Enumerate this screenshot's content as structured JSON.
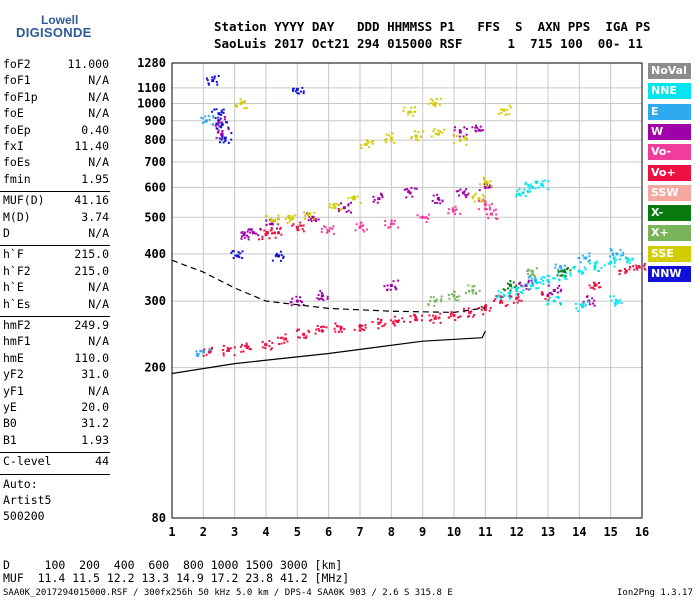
{
  "logo": {
    "line1": "Lowell",
    "line2": "DIGISONDE"
  },
  "header": {
    "line1": "Station YYYY DAY   DDD HHMMSS P1   FFS  S  AXN PPS  IGA PS",
    "line2": "SaoLuis 2017 Oct21 294 015000 RSF      1  715 100  00- 11"
  },
  "params_a": [
    {
      "name": "foF2",
      "value": "11.000"
    },
    {
      "name": "foF1",
      "value": "N/A"
    },
    {
      "name": "foF1p",
      "value": "N/A"
    },
    {
      "name": "foE",
      "value": "N/A"
    },
    {
      "name": "foEp",
      "value": "0.40"
    },
    {
      "name": "fxI",
      "value": "11.40"
    },
    {
      "name": "foEs",
      "value": "N/A"
    },
    {
      "name": "fmin",
      "value": "1.95"
    }
  ],
  "params_b": [
    {
      "name": "MUF(D)",
      "value": "41.16"
    },
    {
      "name": "M(D)",
      "value": "3.74"
    },
    {
      "name": "D",
      "value": "N/A"
    }
  ],
  "params_c": [
    {
      "name": "h`F",
      "value": "215.0"
    },
    {
      "name": "h`F2",
      "value": "215.0"
    },
    {
      "name": "h`E",
      "value": "N/A"
    },
    {
      "name": "h`Es",
      "value": "N/A"
    }
  ],
  "params_d": [
    {
      "name": "hmF2",
      "value": "249.9"
    },
    {
      "name": "hmF1",
      "value": "N/A"
    },
    {
      "name": "hmE",
      "value": "110.0"
    },
    {
      "name": "yF2",
      "value": "31.0"
    },
    {
      "name": "yF1",
      "value": "N/A"
    },
    {
      "name": "yE",
      "value": "20.0"
    },
    {
      "name": "B0",
      "value": "31.2"
    },
    {
      "name": "B1",
      "value": "1.93"
    }
  ],
  "clevel": {
    "name": "C-level",
    "value": "44"
  },
  "auto": {
    "line1": "Auto:",
    "line2": "Artist5",
    "line3": "500200"
  },
  "legend": [
    {
      "label": "NoVal",
      "color": "#8c8c8c"
    },
    {
      "label": "NNE",
      "color": "#00e5ee"
    },
    {
      "label": "E",
      "color": "#2eaaf0"
    },
    {
      "label": "W",
      "color": "#a000a8"
    },
    {
      "label": "Vo-",
      "color": "#f03c9c"
    },
    {
      "label": "Vo+",
      "color": "#ee1040"
    },
    {
      "label": "SSW",
      "color": "#f4a8a0"
    },
    {
      "label": "X-",
      "color": "#0a7a10"
    },
    {
      "label": "X+",
      "color": "#7ab45a"
    },
    {
      "label": "SSE",
      "color": "#d2cc00"
    },
    {
      "label": "NNW",
      "color": "#1010d8"
    }
  ],
  "footer": {
    "dist_line": "D     100  200  400  600  800 1000 1500 3000 [km]",
    "muf_line": "MUF  11.4 11.5 12.2 13.3 14.9 17.2 23.8 41.2 [MHz]",
    "info_line": "SAA0K_2017294015000.RSF / 300fx256h 50 kHz 5.0 km / DPS-4 SAA0K 903 / 2.6 S 315.8 E",
    "version": "Ion2Png 1.3.17"
  },
  "chart_data": {
    "type": "scatter",
    "x_ticks": [
      "1",
      "2",
      "3",
      "4",
      "5",
      "6",
      "7",
      "8",
      "9",
      "10",
      "11",
      "12",
      "13",
      "14",
      "15",
      "16"
    ],
    "y_ticks": [
      "80",
      "200",
      "300",
      "400",
      "500",
      "600",
      "700",
      "800",
      "900",
      "1000",
      "1100",
      "1280"
    ],
    "xlim": [
      1,
      16
    ],
    "ylim": [
      80,
      1280
    ],
    "y_scale": "log",
    "grid": true,
    "legend_position": "right",
    "series": [
      {
        "name": "Vo+",
        "color": "#ee1040",
        "points": [
          [
            2.2,
            220
          ],
          [
            2.8,
            222
          ],
          [
            3.4,
            226
          ],
          [
            4.0,
            230
          ],
          [
            4.6,
            238
          ],
          [
            5.2,
            245
          ],
          [
            5.8,
            250
          ],
          [
            6.4,
            255
          ],
          [
            7.0,
            258
          ],
          [
            7.6,
            262
          ],
          [
            8.2,
            265
          ],
          [
            8.8,
            268
          ],
          [
            9.4,
            270
          ],
          [
            10.0,
            275
          ],
          [
            10.5,
            280
          ],
          [
            11.0,
            285
          ],
          [
            11.5,
            300
          ],
          [
            12.0,
            305
          ],
          [
            13.0,
            310
          ],
          [
            14.5,
            330
          ],
          [
            15.5,
            360
          ],
          [
            15.9,
            370
          ],
          [
            4.0,
            450
          ],
          [
            4.4,
            455
          ],
          [
            5.0,
            470
          ]
        ]
      },
      {
        "name": "W",
        "color": "#a000a8",
        "points": [
          [
            3.3,
            450
          ],
          [
            3.6,
            455
          ],
          [
            4.2,
            480
          ],
          [
            5.5,
            500
          ],
          [
            6.5,
            530
          ],
          [
            7.6,
            560
          ],
          [
            8.6,
            580
          ],
          [
            9.5,
            560
          ],
          [
            10.3,
            580
          ],
          [
            11.0,
            600
          ],
          [
            10.2,
            840
          ],
          [
            10.8,
            850
          ],
          [
            2.5,
            900
          ],
          [
            2.6,
            830
          ],
          [
            5.0,
            300
          ],
          [
            5.8,
            310
          ],
          [
            8.0,
            330
          ],
          [
            12.3,
            330
          ],
          [
            13.2,
            320
          ],
          [
            14.3,
            300
          ]
        ]
      },
      {
        "name": "NNE",
        "color": "#00e5ee",
        "points": [
          [
            11.6,
            310
          ],
          [
            12.0,
            320
          ],
          [
            12.5,
            330
          ],
          [
            13.0,
            340
          ],
          [
            13.5,
            350
          ],
          [
            14.0,
            360
          ],
          [
            14.5,
            370
          ],
          [
            15.0,
            380
          ],
          [
            15.5,
            390
          ],
          [
            12.2,
            580
          ],
          [
            12.5,
            600
          ],
          [
            12.8,
            610
          ],
          [
            13.2,
            300
          ],
          [
            14.1,
            290
          ],
          [
            15.2,
            300
          ]
        ]
      },
      {
        "name": "SSE",
        "color": "#d2cc00",
        "points": [
          [
            4.2,
            490
          ],
          [
            4.8,
            495
          ],
          [
            5.4,
            510
          ],
          [
            6.2,
            530
          ],
          [
            6.8,
            560
          ],
          [
            7.2,
            780
          ],
          [
            8.0,
            810
          ],
          [
            8.8,
            820
          ],
          [
            9.5,
            830
          ],
          [
            10.2,
            800
          ],
          [
            11.0,
            620
          ],
          [
            10.8,
            560
          ],
          [
            3.2,
            1000
          ],
          [
            9.4,
            1000
          ],
          [
            8.6,
            950
          ],
          [
            11.6,
            960
          ]
        ]
      },
      {
        "name": "NNW",
        "color": "#1010d8",
        "points": [
          [
            2.6,
            880
          ],
          [
            2.7,
            810
          ],
          [
            2.5,
            940
          ],
          [
            2.3,
            1150
          ],
          [
            5.0,
            1090
          ],
          [
            3.1,
            395
          ],
          [
            4.4,
            395
          ]
        ]
      },
      {
        "name": "E",
        "color": "#2eaaf0",
        "points": [
          [
            12.6,
            340
          ],
          [
            13.4,
            370
          ],
          [
            14.2,
            390
          ],
          [
            15.2,
            400
          ],
          [
            2.0,
            220
          ],
          [
            2.1,
            900
          ]
        ]
      },
      {
        "name": "Vo-",
        "color": "#f03c9c",
        "points": [
          [
            6.0,
            460
          ],
          [
            7.0,
            470
          ],
          [
            8.0,
            480
          ],
          [
            9.0,
            500
          ],
          [
            10.0,
            520
          ],
          [
            11.0,
            540
          ],
          [
            11.2,
            510
          ]
        ]
      },
      {
        "name": "X+",
        "color": "#7ab45a",
        "points": [
          [
            9.4,
            300
          ],
          [
            10.0,
            310
          ],
          [
            10.6,
            320
          ],
          [
            12.5,
            360
          ]
        ]
      },
      {
        "name": "X-",
        "color": "#0a7a10",
        "points": [
          [
            11.8,
            330
          ],
          [
            13.5,
            360
          ]
        ]
      }
    ],
    "lines": [
      {
        "name": "lower-trace",
        "color": "#000000",
        "points": [
          [
            1.0,
            193
          ],
          [
            3.0,
            205
          ],
          [
            6.0,
            218
          ],
          [
            9.0,
            235
          ],
          [
            10.9,
            240
          ],
          [
            11.0,
            250
          ]
        ]
      },
      {
        "name": "dashed-trace",
        "color": "#000000",
        "points": [
          [
            1.0,
            385
          ],
          [
            2.0,
            358
          ],
          [
            3.0,
            325
          ],
          [
            4.0,
            300
          ],
          [
            6.0,
            287
          ],
          [
            8.0,
            282
          ],
          [
            10.0,
            280
          ],
          [
            11.0,
            288
          ]
        ]
      }
    ]
  }
}
